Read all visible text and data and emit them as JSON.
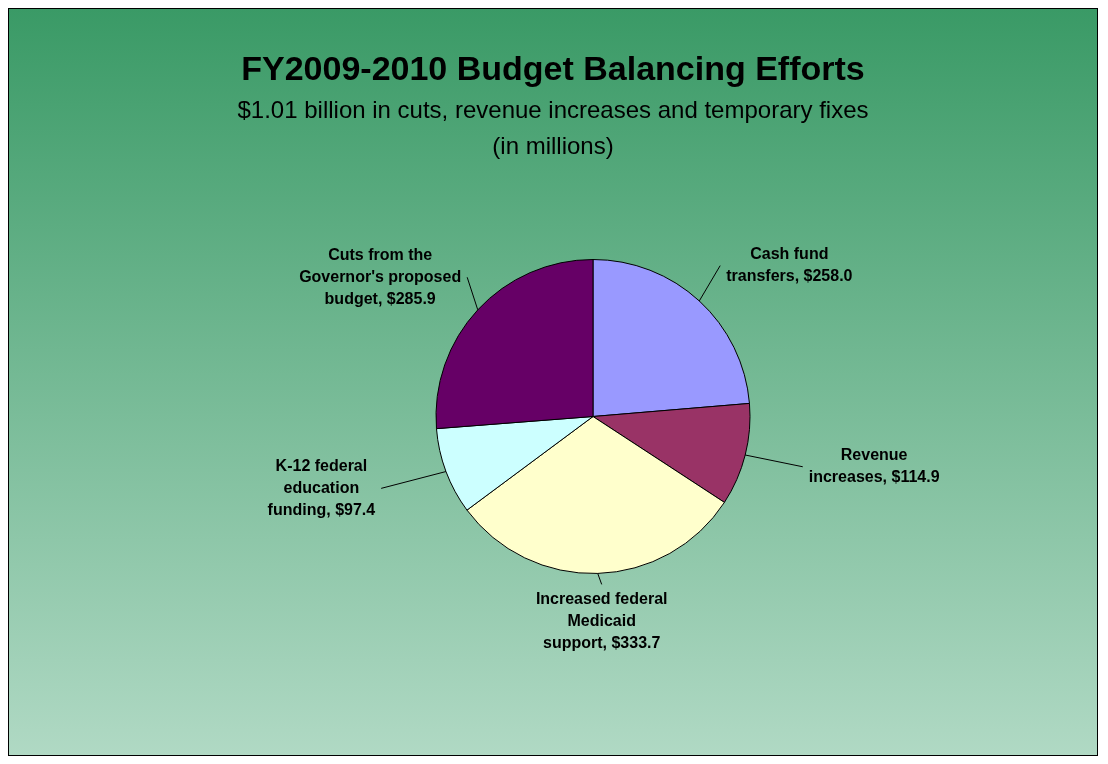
{
  "chart_data": {
    "type": "pie",
    "title": "FY2009-2010 Budget Balancing Efforts",
    "subtitle": "$1.01 billion in cuts, revenue increases and temporary fixes",
    "annotations": [
      "(in millions)"
    ],
    "categories": [
      "Cash fund transfers",
      "Revenue increases",
      "Increased federal Medicaid support",
      "K-12 federal education funding",
      "Cuts from the Governor's proposed budget"
    ],
    "values": [
      258.0,
      114.9,
      333.7,
      97.4,
      285.9
    ],
    "value_labels": [
      "$258.0",
      "$114.9",
      "$333.7",
      "$97.4",
      "$285.9"
    ],
    "colors": [
      "#9999ff",
      "#993366",
      "#ffffcc",
      "#ccffff",
      "#660066"
    ],
    "legend": false
  }
}
